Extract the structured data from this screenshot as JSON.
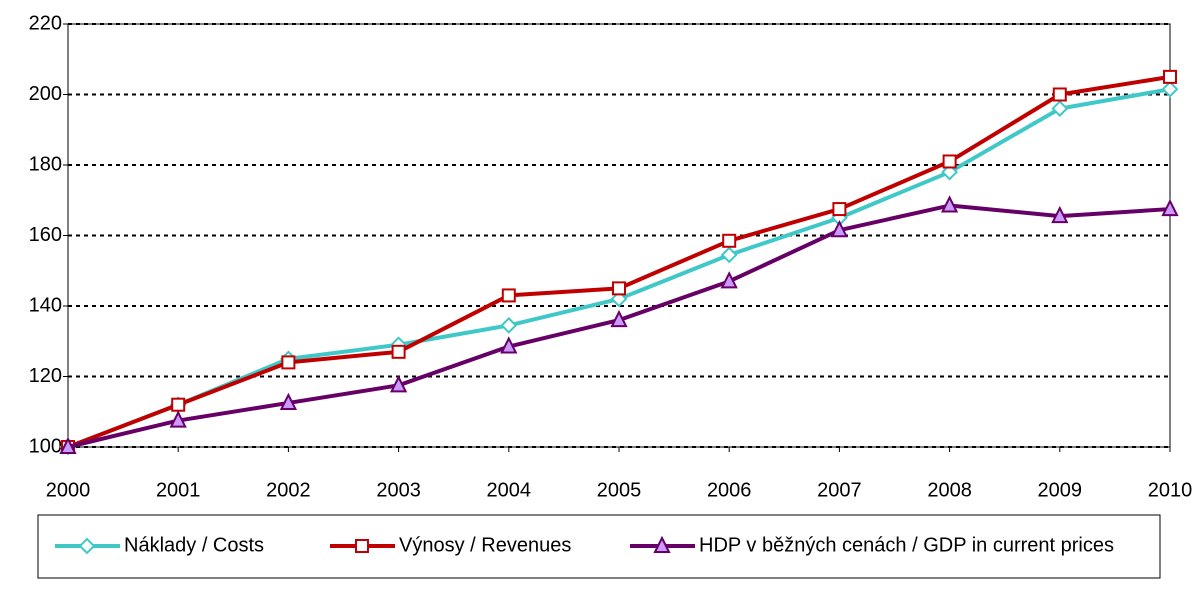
{
  "chart_data": {
    "type": "line",
    "categories": [
      "2000",
      "2001",
      "2002",
      "2003",
      "2004",
      "2005",
      "2006",
      "2007",
      "2008",
      "2009",
      "2010"
    ],
    "series": [
      {
        "name": "Náklady / Costs",
        "color": "#40c8c8",
        "marker": "diamond",
        "marker_fill": "#ffffff",
        "values": [
          100,
          112,
          125,
          129,
          134.5,
          142,
          154.5,
          165,
          178,
          196,
          201.5
        ]
      },
      {
        "name": "Výnosy / Revenues",
        "color": "#c00000",
        "marker": "square",
        "marker_fill": "#ffffff",
        "values": [
          100,
          112,
          124,
          127,
          143,
          145,
          158.5,
          167.5,
          181,
          200,
          205
        ]
      },
      {
        "name": "HDP v běžných cenách / GDP in current prices",
        "color": "#660066",
        "marker": "triangle",
        "marker_fill": "#cc99ff",
        "values": [
          100,
          107.5,
          112.5,
          117.5,
          128.5,
          136,
          147,
          161.5,
          168.5,
          165.5,
          167.5
        ]
      }
    ],
    "ylim": [
      100,
      220
    ],
    "yticks": [
      100,
      120,
      140,
      160,
      180,
      200,
      220
    ],
    "grid": true,
    "legend": "bottom"
  }
}
